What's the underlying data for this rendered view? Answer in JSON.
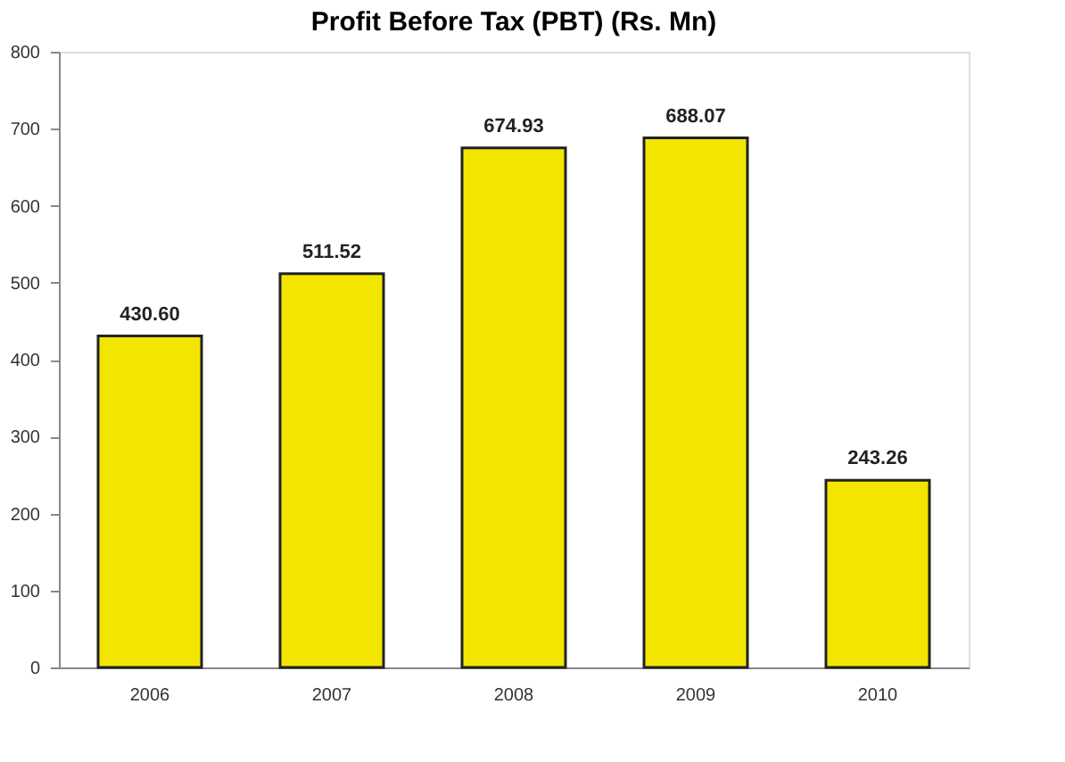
{
  "chart_data": {
    "type": "bar",
    "title": "Profit Before Tax (PBT) (Rs. Mn)",
    "categories": [
      "2006",
      "2007",
      "2008",
      "2009",
      "2010"
    ],
    "values": [
      430.6,
      511.52,
      674.93,
      688.07,
      243.26
    ],
    "value_labels": [
      "430.60",
      "511.52",
      "674.93",
      "688.07",
      "243.26"
    ],
    "color": "#f2e600",
    "ylim": [
      0,
      800
    ],
    "yticks": [
      0,
      100,
      200,
      300,
      400,
      500,
      600,
      700,
      800
    ],
    "grid": false
  }
}
